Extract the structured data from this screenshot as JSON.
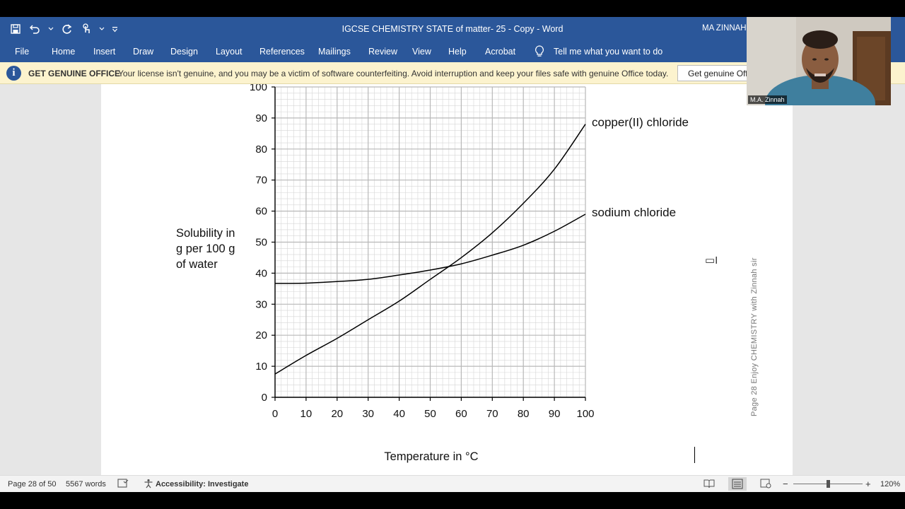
{
  "window": {
    "title": "IGCSE CHEMISTRY STATE of matter- 25 - Copy  -  Word",
    "user": "MA ZINNAH"
  },
  "ribbon": {
    "tabs": [
      "File",
      "Home",
      "Insert",
      "Draw",
      "Design",
      "Layout",
      "References",
      "Mailings",
      "Review",
      "View",
      "Help",
      "Acrobat"
    ],
    "tell_me": "Tell me what you want to do"
  },
  "message_bar": {
    "title": "GET GENUINE OFFICE",
    "text": "Your license isn't genuine, and you may be a victim of software counterfeiting. Avoid interruption and keep your files safe with genuine Office today.",
    "button": "Get genuine Off"
  },
  "document": {
    "margin_text": "Page 28      Enjoy  CHEMISTRY  with Zinnah sir"
  },
  "chart_data": {
    "type": "line",
    "ylabel_lines": [
      "Solubility in",
      "g per 100 g",
      "of water"
    ],
    "xlabel": "Temperature in °C",
    "xlim": [
      0,
      100
    ],
    "ylim": [
      0,
      100
    ],
    "x_ticks": [
      0,
      10,
      20,
      30,
      40,
      50,
      60,
      70,
      80,
      90,
      100
    ],
    "y_ticks": [
      0,
      10,
      20,
      30,
      40,
      50,
      60,
      70,
      80,
      90,
      100
    ],
    "grid": true,
    "series": [
      {
        "name": "copper(II) chloride",
        "x": [
          0,
          10,
          20,
          30,
          40,
          50,
          60,
          70,
          80,
          90,
          100
        ],
        "y": [
          7.5,
          13.5,
          19,
          25,
          31,
          38,
          45,
          53,
          62.5,
          73.5,
          88
        ]
      },
      {
        "name": "sodium chloride",
        "x": [
          0,
          10,
          20,
          30,
          40,
          50,
          60,
          70,
          80,
          90,
          100
        ],
        "y": [
          36.7,
          36.8,
          37.3,
          38,
          39.4,
          41,
          43,
          45.8,
          49,
          53.5,
          59
        ]
      }
    ]
  },
  "status_bar": {
    "page": "Page 28 of 50",
    "words": "5567 words",
    "accessibility": "Accessibility: Investigate",
    "zoom": "120%"
  },
  "webcam": {
    "name": "M.A. Zinnah"
  }
}
